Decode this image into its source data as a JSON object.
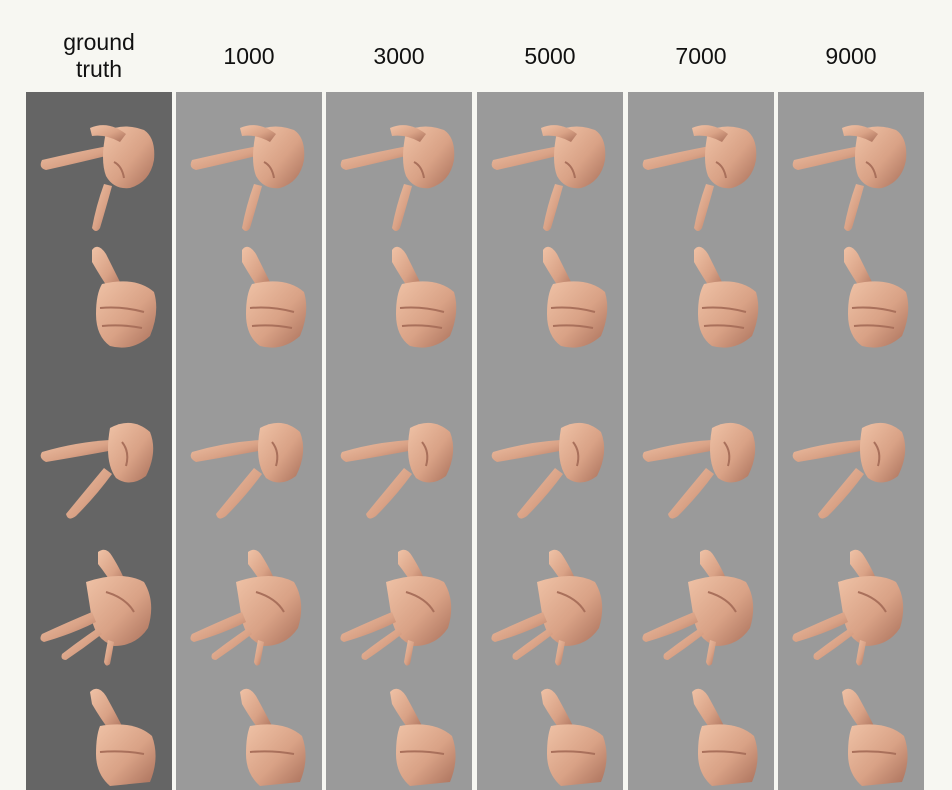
{
  "figure": {
    "columns": [
      {
        "label": "ground\ntruth",
        "kind": "ground-truth"
      },
      {
        "label": "1000",
        "kind": "prediction"
      },
      {
        "label": "3000",
        "kind": "prediction"
      },
      {
        "label": "5000",
        "kind": "prediction"
      },
      {
        "label": "7000",
        "kind": "prediction"
      },
      {
        "label": "9000",
        "kind": "prediction"
      }
    ],
    "rows": [
      {
        "pose": "pointing-index-thumb-down-hand-icon"
      },
      {
        "pose": "thumbs-up-hand-icon"
      },
      {
        "pose": "pointing-v-hand-icon"
      },
      {
        "pose": "open-three-finger-hand-icon"
      },
      {
        "pose": "partial-thumbs-up-hand-icon"
      }
    ],
    "colors": {
      "page_background": "#f7f7f2",
      "ground_truth_background": "#656565",
      "prediction_background": "#9a9a9a",
      "skin": "#d9a286",
      "skin_shadow": "#a9705b"
    }
  }
}
